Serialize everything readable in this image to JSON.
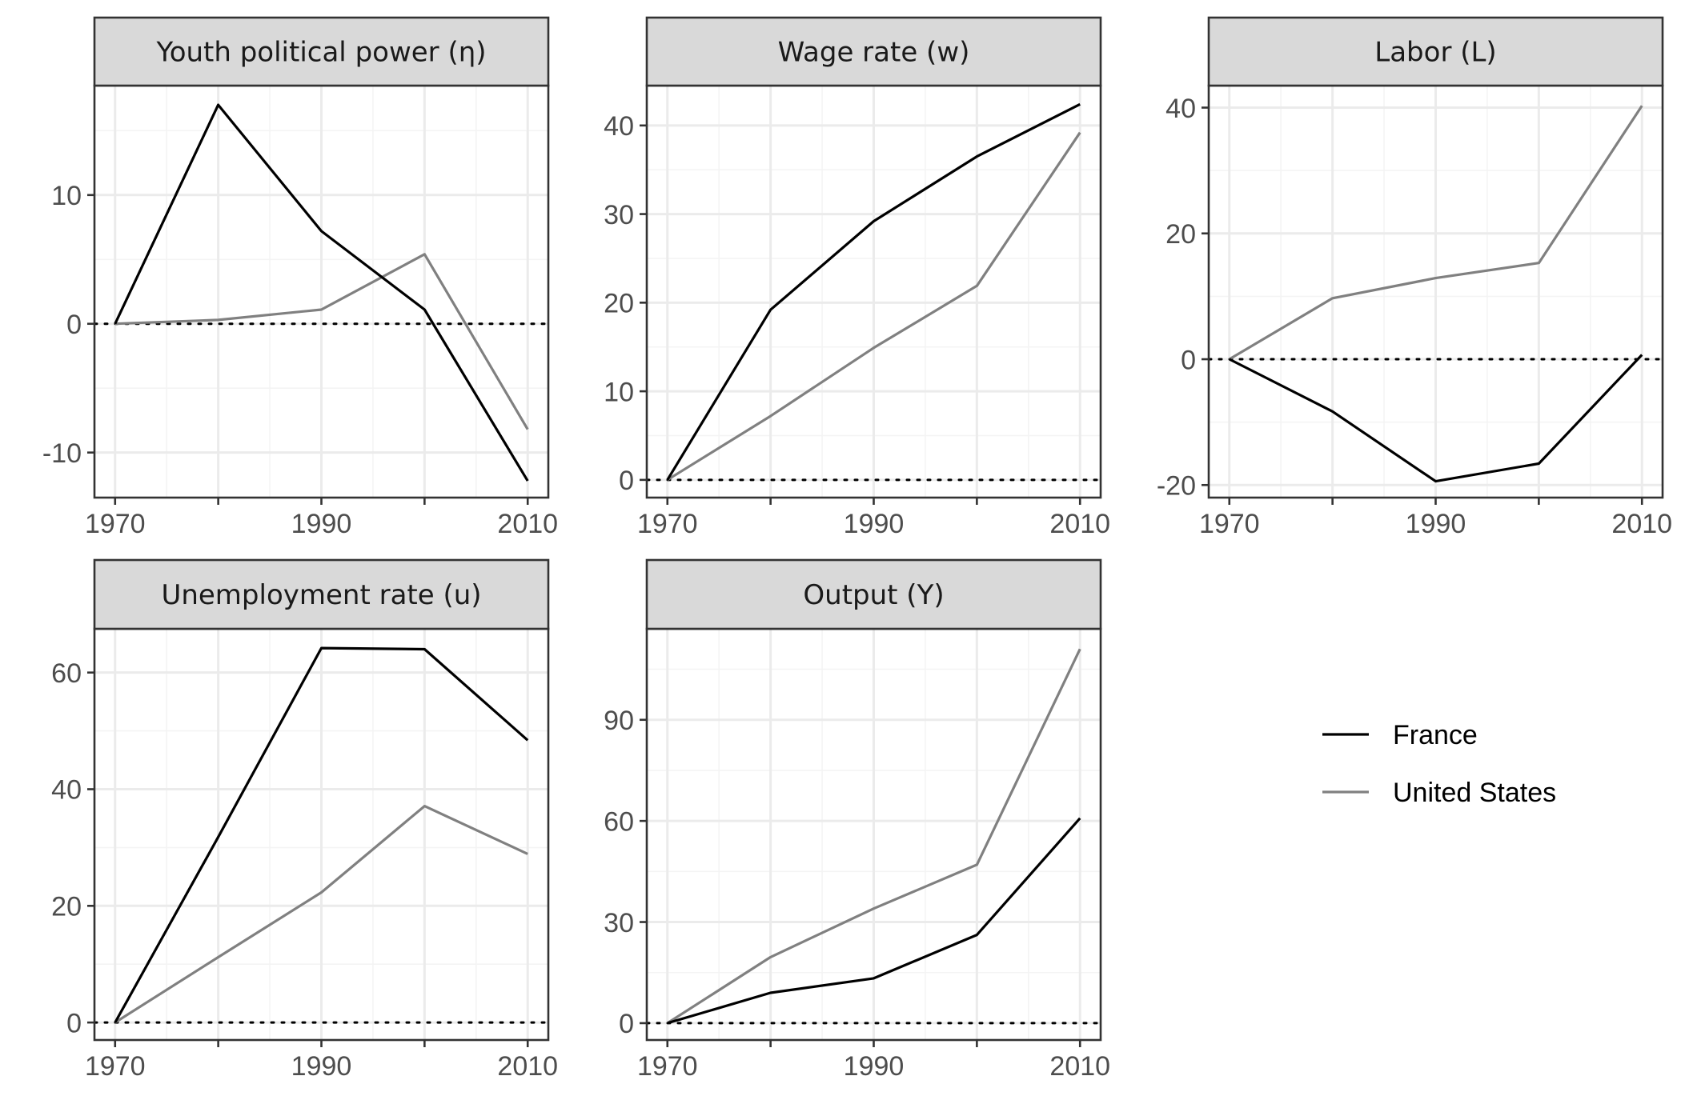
{
  "colors": {
    "france": "#000000",
    "united_states": "#808080",
    "strip_fill": "#d9d9d9",
    "grid_major": "#ebebeb",
    "grid_minor": "#f4f4f4",
    "frame": "#333333",
    "tick_text": "#4d4d4d",
    "zero_line": "#000000"
  },
  "legend": {
    "placement": "right",
    "entries": [
      {
        "label": "France",
        "color": "#000000"
      },
      {
        "label": "United States",
        "color": "#808080"
      }
    ]
  },
  "chart_data": [
    {
      "type": "line",
      "title": "Youth political power (η)",
      "x": [
        1970,
        1980,
        1990,
        2000,
        2010
      ],
      "xticks": [
        "1970",
        "1990",
        "2010"
      ],
      "xlim": [
        1970,
        2010
      ],
      "ylim": [
        -13.5,
        18.5
      ],
      "yticks": [
        "-10",
        "0",
        "10"
      ],
      "grid": true,
      "zero_reference_line": true,
      "series": [
        {
          "name": "France",
          "values": [
            0,
            17,
            7.2,
            1.1,
            -12.2
          ]
        },
        {
          "name": "United States",
          "values": [
            0,
            0.3,
            1.1,
            5.4,
            -8.2
          ]
        }
      ]
    },
    {
      "type": "line",
      "title": "Wage rate (w)",
      "x": [
        1970,
        1980,
        1990,
        2000,
        2010
      ],
      "xticks": [
        "1970",
        "1990",
        "2010"
      ],
      "xlim": [
        1970,
        2010
      ],
      "ylim": [
        -2,
        44.5
      ],
      "yticks": [
        "0",
        "10",
        "20",
        "30",
        "40"
      ],
      "grid": true,
      "zero_reference_line": true,
      "series": [
        {
          "name": "France",
          "values": [
            0,
            19.2,
            29.2,
            36.5,
            42.4
          ]
        },
        {
          "name": "United States",
          "values": [
            0,
            7.2,
            14.9,
            21.9,
            39.2
          ]
        }
      ]
    },
    {
      "type": "line",
      "title": "Labor (L)",
      "x": [
        1970,
        1980,
        1990,
        2000,
        2010
      ],
      "xticks": [
        "1970",
        "1990",
        "2010"
      ],
      "xlim": [
        1970,
        2010
      ],
      "ylim": [
        -22,
        43.5
      ],
      "yticks": [
        "-20",
        "0",
        "20",
        "40"
      ],
      "grid": true,
      "zero_reference_line": true,
      "series": [
        {
          "name": "France",
          "values": [
            0,
            -8.3,
            -19.4,
            -16.6,
            0.7
          ]
        },
        {
          "name": "United States",
          "values": [
            0,
            9.7,
            12.9,
            15.3,
            40.3
          ]
        }
      ]
    },
    {
      "type": "line",
      "title": "Unemployment rate (u)",
      "x": [
        1970,
        1980,
        1990,
        2000,
        2010
      ],
      "xticks": [
        "1970",
        "1990",
        "2010"
      ],
      "xlim": [
        1970,
        2010
      ],
      "ylim": [
        -3,
        67.5
      ],
      "yticks": [
        "0",
        "20",
        "40",
        "60"
      ],
      "grid": true,
      "zero_reference_line": true,
      "series": [
        {
          "name": "France",
          "values": [
            0,
            31.8,
            64.2,
            64.0,
            48.4
          ]
        },
        {
          "name": "United States",
          "values": [
            0,
            11.2,
            22.3,
            37.1,
            28.9
          ]
        }
      ]
    },
    {
      "type": "line",
      "title": "Output (Y)",
      "x": [
        1970,
        1980,
        1990,
        2000,
        2010
      ],
      "xticks": [
        "1970",
        "1990",
        "2010"
      ],
      "xlim": [
        1970,
        2010
      ],
      "ylim": [
        -5,
        117
      ],
      "yticks": [
        "0",
        "30",
        "60",
        "90"
      ],
      "grid": true,
      "zero_reference_line": true,
      "series": [
        {
          "name": "France",
          "values": [
            0,
            9,
            13.3,
            26.2,
            60.8
          ]
        },
        {
          "name": "United States",
          "values": [
            0,
            19.6,
            34,
            47,
            111
          ]
        }
      ]
    }
  ]
}
